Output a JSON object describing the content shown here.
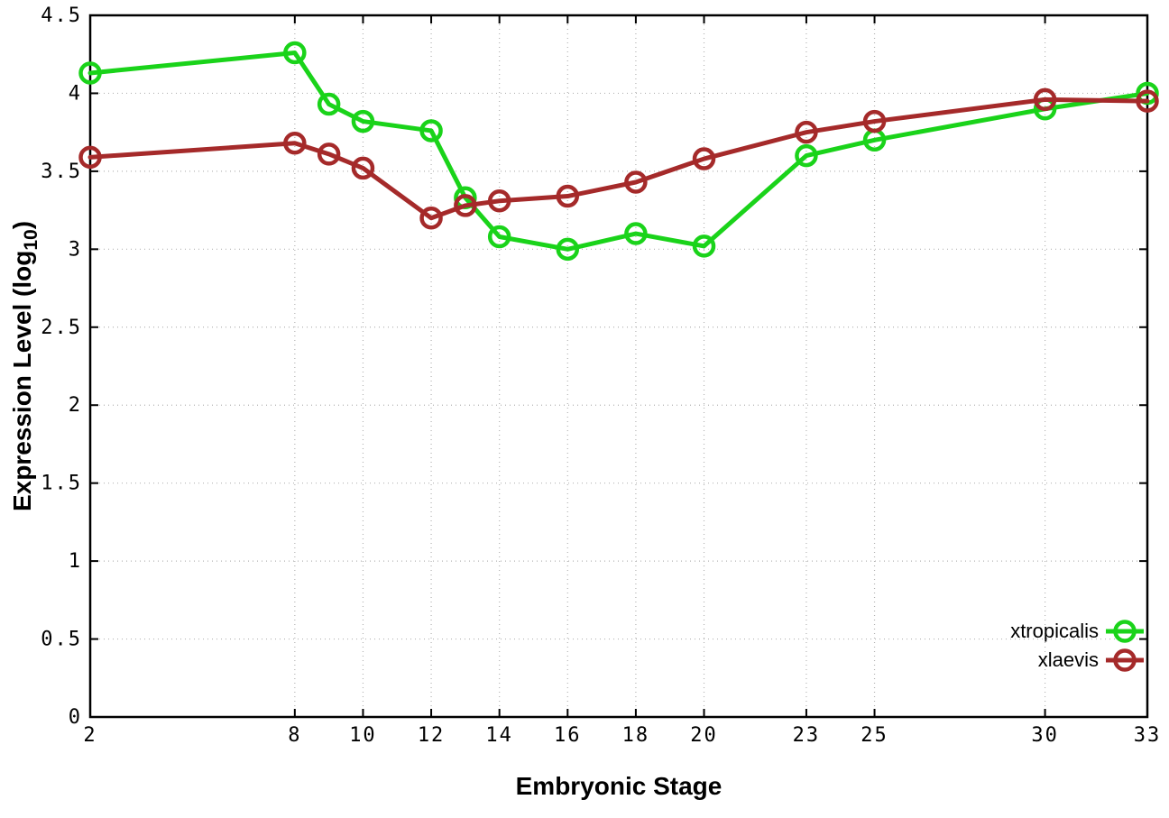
{
  "figure": {
    "background": "#ffffff",
    "border_color": "#000000",
    "grid_color": "#b3b3b3"
  },
  "chart_data": {
    "type": "line",
    "title": "",
    "xlabel": "Embryonic Stage",
    "ylabel": {
      "prefix": "Expression Level (log",
      "sub": "10",
      "suffix": ")"
    },
    "x": [
      2,
      8,
      9,
      10,
      12,
      13,
      14,
      16,
      18,
      20,
      23,
      25,
      30,
      33
    ],
    "x_ticks": [
      2,
      8,
      10,
      12,
      14,
      16,
      18,
      20,
      23,
      25,
      30,
      33
    ],
    "x_tick_labels": [
      "2",
      "8",
      "10",
      "12",
      "14",
      "16",
      "18",
      "20",
      "23",
      "25",
      "30",
      "33"
    ],
    "xlim": [
      2,
      33
    ],
    "y_ticks": [
      0,
      0.5,
      1,
      1.5,
      2,
      2.5,
      3,
      3.5,
      4,
      4.5
    ],
    "y_tick_labels": [
      "0",
      "0.5",
      "1",
      "1.5",
      "2",
      "2.5",
      "3",
      "3.5",
      "4",
      "4.5"
    ],
    "ylim": [
      0,
      4.5
    ],
    "grid": true,
    "legend_position": "bottom-right-inside",
    "marker": "open-circle",
    "series": [
      {
        "name": "xtropicalis",
        "color": "#1ad31a",
        "values": [
          4.13,
          4.26,
          3.93,
          3.82,
          3.76,
          3.33,
          3.08,
          3.0,
          3.1,
          3.02,
          3.6,
          3.7,
          3.9,
          4.0
        ]
      },
      {
        "name": "xlaevis",
        "color": "#a52a2a",
        "values": [
          3.59,
          3.68,
          3.61,
          3.52,
          3.2,
          3.28,
          3.31,
          3.34,
          3.43,
          3.58,
          3.75,
          3.82,
          3.96,
          3.95
        ]
      }
    ]
  }
}
